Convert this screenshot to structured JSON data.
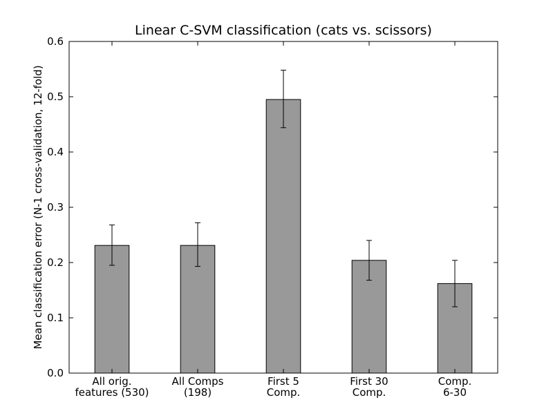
{
  "chart_data": {
    "type": "bar",
    "title": "Linear C-SVM classification (cats vs. scissors)",
    "xlabel": "",
    "ylabel": "Mean classification error (N-1 cross-validation, 12-fold)",
    "ylim": [
      0.0,
      0.6
    ],
    "yticks": [
      "0.0",
      "0.1",
      "0.2",
      "0.3",
      "0.4",
      "0.5",
      "0.6"
    ],
    "categories": [
      [
        "All orig.",
        "features (530)"
      ],
      [
        "All Comps",
        "(198)"
      ],
      [
        "First 5",
        "Comp."
      ],
      [
        "First 30",
        "Comp."
      ],
      [
        "Comp.",
        "6-30"
      ]
    ],
    "values": [
      0.231,
      0.231,
      0.495,
      0.204,
      0.162
    ],
    "error_low": [
      0.195,
      0.193,
      0.444,
      0.168,
      0.12
    ],
    "error_high": [
      0.268,
      0.272,
      0.548,
      0.24,
      0.204
    ],
    "bar_color": "#999999",
    "grid": false
  }
}
